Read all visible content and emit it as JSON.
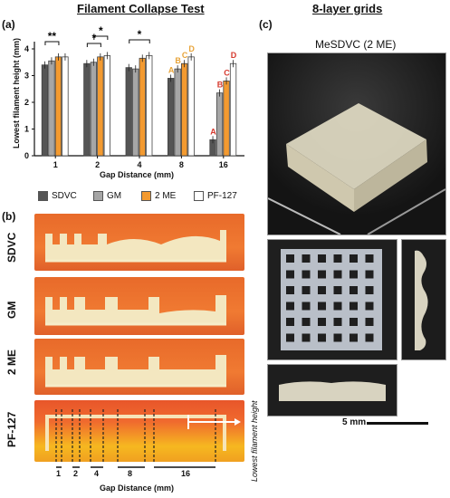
{
  "titles": {
    "left": "Filament Collapse Test",
    "right": "8-layer grids"
  },
  "panels": {
    "a": "(a)",
    "b": "(b)",
    "c": "(c)"
  },
  "chart_data": {
    "type": "bar",
    "xlabel": "Gap Distance (mm)",
    "ylabel": "Lowest filament height (mm)",
    "categories": [
      "1",
      "2",
      "4",
      "8",
      "16"
    ],
    "ylim": [
      0,
      4
    ],
    "yticks": [
      "0",
      "1",
      "2",
      "3",
      "4"
    ],
    "series": [
      {
        "name": "SDVC",
        "color": "#555555",
        "values": [
          3.4,
          3.45,
          3.3,
          2.9,
          0.6
        ]
      },
      {
        "name": "GM",
        "color": "#a6a6a6",
        "values": [
          3.55,
          3.5,
          3.25,
          3.25,
          2.35
        ]
      },
      {
        "name": "2 ME",
        "color": "#f39a30",
        "values": [
          3.7,
          3.7,
          3.65,
          3.45,
          2.8
        ]
      },
      {
        "name": "PF-127",
        "color": "#ffffff",
        "values": [
          3.7,
          3.75,
          3.75,
          3.7,
          3.45
        ]
      }
    ],
    "annotations": {
      "significance": [
        "**",
        "*",
        "*",
        "*"
      ],
      "letters_8": [
        "A",
        "B",
        "C",
        "D"
      ],
      "letters_16": [
        "A",
        "B",
        "C",
        "D"
      ]
    },
    "letter_colors": {
      "orange": "#e8a43a",
      "red": "#d63a2f"
    }
  },
  "strips": {
    "labels": [
      "SDVC",
      "GM",
      "2 ME",
      "PF-127"
    ],
    "side_note": "Lowest filament height",
    "gap_labels": [
      "1",
      "2",
      "4",
      "8",
      "16"
    ],
    "xlabel": "Gap Distance (mm)"
  },
  "grids": {
    "caption": "MeSDVC (2 ME)",
    "scale": "5 mm"
  }
}
